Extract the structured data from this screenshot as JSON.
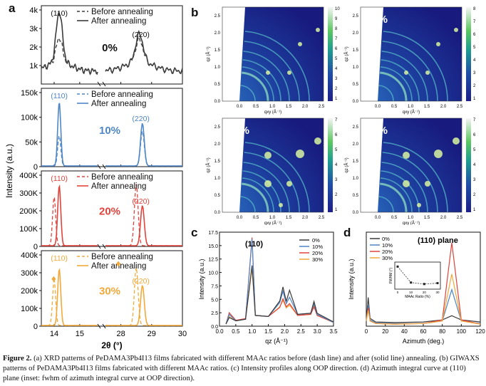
{
  "panel_letters": {
    "a": "a",
    "b": "b",
    "c": "c",
    "d": "d"
  },
  "caption": {
    "label": "Figure 2.",
    "text": "(a) XRD patterns of PeDAMA3Pb4I13 films fabricated with different MAAc ratios before (dash line) and after (solid line) annealing. (b) GIWAXS patterns of PeDAMA3Pb4I13 films fabricated with different MAAc ratios. (c) Intensity profiles along OOP direction. (d) Azimuth integral curve at (110) plane (inset: fwhm of azimuth integral curve at OOP direction)."
  },
  "colors": {
    "c0": "#3b3b3b",
    "c10": "#4f86c6",
    "c20": "#e0433c",
    "c30": "#f2a93b"
  },
  "chart_data": [
    {
      "type": "line",
      "panel": "a",
      "xlabel": "2θ (°)",
      "ylabel": "Intensity (a.u.)",
      "x_ticks": [
        "14",
        "15",
        "28",
        "29",
        "30"
      ],
      "xlim_left": [
        13.5,
        15.7
      ],
      "xlim_right": [
        27.5,
        30.0
      ],
      "subplots": [
        {
          "label": "0%",
          "color": "#3b3b3b",
          "y_ticks": [
            "1k",
            "2k",
            "3k",
            "4k"
          ],
          "ylim": [
            0,
            4000
          ],
          "legend": [
            "Before annealing",
            "After annealing"
          ],
          "peaks": [
            {
              "name": "(110)",
              "x": 14.2,
              "before": 2000,
              "after": 3400
            },
            {
              "name": "(220)",
              "x": 28.6,
              "before": 1900,
              "after": 2200
            }
          ]
        },
        {
          "label": "10%",
          "color": "#4f86c6",
          "y_ticks": [
            "0",
            "50k",
            "100k",
            "150k"
          ],
          "ylim": [
            0,
            150000
          ],
          "legend": [
            "Before annealing",
            "After annealing"
          ],
          "peaks": [
            {
              "name": "(110)",
              "x": 14.2,
              "before": 63000,
              "after": 130000
            },
            {
              "name": "(220)",
              "x": 28.7,
              "before": 72000,
              "after": 88000
            }
          ]
        },
        {
          "label": "20%",
          "color": "#e0433c",
          "y_ticks": [
            "0",
            "100K",
            "200K",
            "300K",
            "400K"
          ],
          "ylim": [
            0,
            400000
          ],
          "legend": [
            "Before annealing",
            "After annealing"
          ],
          "peaks": [
            {
              "name": "(110)",
              "x": 14.2,
              "before": 280000,
              "after": 340000
            },
            {
              "name": "(220)",
              "x": 28.7,
              "before": 350000,
              "after": 230000
            }
          ]
        },
        {
          "label": "30%",
          "color": "#f2a93b",
          "y_ticks": [
            "0",
            "100k",
            "200k",
            "300k",
            "400k"
          ],
          "ylim": [
            0,
            400000
          ],
          "legend": [
            "Before annealing",
            "After annealing"
          ],
          "peaks": [
            {
              "name": "(110)",
              "x": 14.2,
              "before": 260000,
              "after": 320000
            },
            {
              "name": "(220)",
              "x": 28.7,
              "before": 330000,
              "after": 230000
            }
          ]
        }
      ]
    },
    {
      "type": "heatmap",
      "panel": "b",
      "xlabel": "qxy (Å⁻¹)",
      "ylabel": "qz (Å⁻¹)",
      "x_ticks": [
        "0.0",
        "0.5",
        "1.0",
        "1.5",
        "2.0",
        "2.5"
      ],
      "y_ticks": [
        "0.0",
        "0.5",
        "1.0",
        "1.5",
        "2.0",
        "2.5"
      ],
      "images": [
        {
          "label": "0%",
          "colorbar_ticks": [
            "10",
            "9",
            "8",
            "7",
            "6",
            "5",
            "4",
            "3",
            "2",
            "1"
          ]
        },
        {
          "label": "10%",
          "colorbar_ticks": [
            "8",
            "7",
            "6",
            "5",
            "4",
            "3",
            "2",
            "1"
          ]
        },
        {
          "label": "20%",
          "colorbar_ticks": [
            "7",
            "6",
            "5",
            "4",
            "3",
            "2",
            "1"
          ]
        },
        {
          "label": "30%",
          "colorbar_ticks": [
            "7",
            "6",
            "5",
            "4",
            "3",
            "2",
            "1"
          ]
        }
      ]
    },
    {
      "type": "line",
      "panel": "c",
      "xlabel": "qz (Å⁻¹)",
      "ylabel": "Intensity (a.u.)",
      "annotation": "(110)",
      "xlim": [
        0,
        3.5
      ],
      "ylim": [
        0,
        17.5
      ],
      "x_ticks": [
        "0.0",
        "0.5",
        "1.0",
        "1.5",
        "2.0",
        "2.5",
        "3.0",
        "3.5"
      ],
      "y_ticks": [
        "0.0",
        "2.5",
        "5.0",
        "7.5",
        "10.0",
        "12.5",
        "15.0",
        "17.5"
      ],
      "legend": [
        "0%",
        "10%",
        "20%",
        "30%"
      ],
      "series": [
        {
          "name": "0%",
          "color": "#3b3b3b",
          "points": [
            [
              0.2,
              0.4
            ],
            [
              0.3,
              1.6
            ],
            [
              0.5,
              1.0
            ],
            [
              0.8,
              1.3
            ],
            [
              1.0,
              11.3
            ],
            [
              1.1,
              2.0
            ],
            [
              1.5,
              1.8
            ],
            [
              1.85,
              4.7
            ],
            [
              1.95,
              7.3
            ],
            [
              2.05,
              4.6
            ],
            [
              2.15,
              6.7
            ],
            [
              2.4,
              2.2
            ],
            [
              2.8,
              2.4
            ],
            [
              2.9,
              4.6
            ],
            [
              3.0,
              2.4
            ],
            [
              3.5,
              0.8
            ]
          ]
        },
        {
          "name": "10%",
          "color": "#4f86c6",
          "points": [
            [
              0.2,
              0.4
            ],
            [
              0.3,
              2.2
            ],
            [
              0.5,
              1.0
            ],
            [
              0.8,
              1.3
            ],
            [
              1.0,
              16.2
            ],
            [
              1.1,
              2.0
            ],
            [
              1.5,
              1.8
            ],
            [
              1.85,
              4.4
            ],
            [
              1.95,
              6.5
            ],
            [
              2.05,
              4.2
            ],
            [
              2.15,
              5.4
            ],
            [
              2.4,
              2.2
            ],
            [
              2.8,
              2.4
            ],
            [
              2.9,
              4.2
            ],
            [
              3.0,
              2.2
            ],
            [
              3.5,
              0.7
            ]
          ]
        },
        {
          "name": "20%",
          "color": "#e0433c",
          "points": [
            [
              0.2,
              0.4
            ],
            [
              0.3,
              2.5
            ],
            [
              0.5,
              1.1
            ],
            [
              0.8,
              1.4
            ],
            [
              1.0,
              16.5
            ],
            [
              1.1,
              2.0
            ],
            [
              1.5,
              1.8
            ],
            [
              1.85,
              3.5
            ],
            [
              1.95,
              5.1
            ],
            [
              2.05,
              3.6
            ],
            [
              2.15,
              4.2
            ],
            [
              2.4,
              2.0
            ],
            [
              2.8,
              2.2
            ],
            [
              2.9,
              3.6
            ],
            [
              3.0,
              2.0
            ],
            [
              3.5,
              0.7
            ]
          ]
        },
        {
          "name": "30%",
          "color": "#f2a93b",
          "points": [
            [
              0.2,
              0.4
            ],
            [
              0.3,
              1.8
            ],
            [
              0.5,
              1.0
            ],
            [
              0.8,
              1.3
            ],
            [
              1.0,
              10.8
            ],
            [
              1.1,
              2.0
            ],
            [
              1.5,
              1.8
            ],
            [
              1.85,
              3.6
            ],
            [
              1.95,
              4.8
            ],
            [
              2.05,
              3.4
            ],
            [
              2.15,
              3.9
            ],
            [
              2.4,
              2.0
            ],
            [
              2.8,
              2.2
            ],
            [
              2.9,
              3.8
            ],
            [
              3.0,
              2.0
            ],
            [
              3.5,
              0.7
            ]
          ]
        }
      ]
    },
    {
      "type": "line",
      "panel": "d",
      "xlabel": "Azimuth (deg.)",
      "ylabel": "Intensity (a.u.)",
      "annotation": "(110) plane",
      "xlim": [
        0,
        120
      ],
      "ylim": [
        0,
        180
      ],
      "x_ticks": [
        "0",
        "20",
        "40",
        "60",
        "80",
        "100",
        "120"
      ],
      "legend": [
        "0%",
        "10%",
        "20%",
        "30%"
      ],
      "series": [
        {
          "name": "0%",
          "color": "#3b3b3b",
          "points": [
            [
              0,
              10
            ],
            [
              2,
              55
            ],
            [
              4,
              15
            ],
            [
              10,
              8
            ],
            [
              30,
              7
            ],
            [
              60,
              8
            ],
            [
              80,
              12
            ],
            [
              90,
              20
            ],
            [
              100,
              12
            ],
            [
              120,
              8
            ]
          ]
        },
        {
          "name": "10%",
          "color": "#4f86c6",
          "points": [
            [
              0,
              10
            ],
            [
              2,
              40
            ],
            [
              4,
              12
            ],
            [
              10,
              6
            ],
            [
              30,
              5
            ],
            [
              60,
              5
            ],
            [
              80,
              10
            ],
            [
              90,
              70
            ],
            [
              100,
              10
            ],
            [
              120,
              5
            ]
          ]
        },
        {
          "name": "20%",
          "color": "#e0433c",
          "points": [
            [
              0,
              10
            ],
            [
              2,
              35
            ],
            [
              4,
              10
            ],
            [
              10,
              5
            ],
            [
              30,
              4
            ],
            [
              60,
              5
            ],
            [
              80,
              12
            ],
            [
              90,
              160
            ],
            [
              100,
              12
            ],
            [
              120,
              4
            ]
          ]
        },
        {
          "name": "30%",
          "color": "#f2a93b",
          "points": [
            [
              0,
              10
            ],
            [
              2,
              30
            ],
            [
              4,
              10
            ],
            [
              10,
              5
            ],
            [
              30,
              4
            ],
            [
              60,
              5
            ],
            [
              80,
              10
            ],
            [
              90,
              100
            ],
            [
              100,
              10
            ],
            [
              120,
              4
            ]
          ]
        }
      ],
      "inset": {
        "xlabel": "MAAc Ratio (%)",
        "ylabel": "FWHM (°)",
        "x_ticks": [
          "0",
          "10",
          "20",
          "30"
        ],
        "points": [
          [
            0,
            12.5
          ],
          [
            10,
            7.2
          ],
          [
            20,
            6.7
          ],
          [
            30,
            7.0
          ]
        ],
        "ylim": [
          5,
          14
        ]
      }
    }
  ]
}
